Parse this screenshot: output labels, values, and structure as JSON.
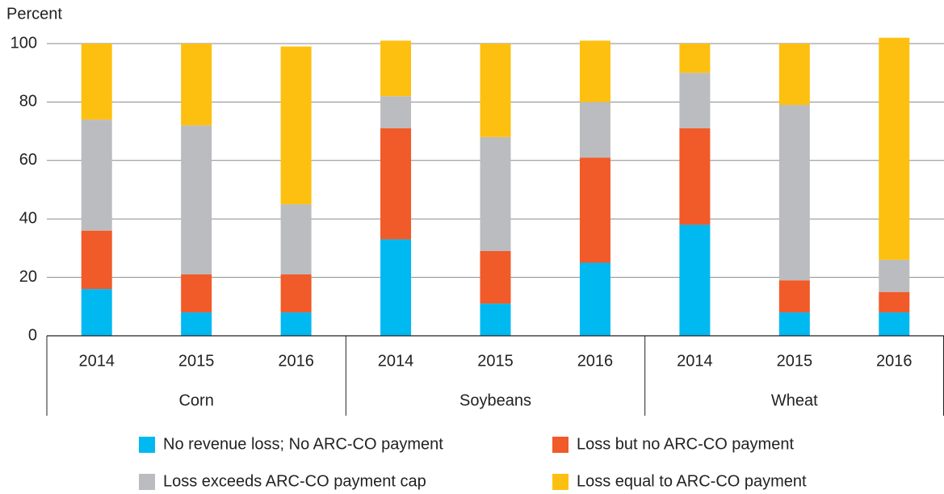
{
  "chart_data": {
    "type": "stacked-bar",
    "y_label": "Percent",
    "categories": [
      "2014",
      "2015",
      "2016",
      "2014",
      "2015",
      "2016",
      "2014",
      "2015",
      "2016"
    ],
    "groups": [
      "Corn",
      "Soybeans",
      "Wheat"
    ],
    "series": [
      {
        "name": "No revenue loss; No ARC-CO payment",
        "color": "#00b9f1",
        "values": [
          16,
          8,
          8,
          33,
          11,
          25,
          38,
          8,
          8
        ]
      },
      {
        "name": "Loss but no ARC-CO payment",
        "color": "#f15a29",
        "values": [
          20,
          13,
          13,
          38,
          18,
          36,
          33,
          11,
          7
        ]
      },
      {
        "name": "Loss exceeds ARC-CO payment cap",
        "color": "#bbbcbf",
        "values": [
          38,
          51,
          24,
          11,
          39,
          19,
          19,
          60,
          11
        ]
      },
      {
        "name": "Loss equal to ARC-CO payment",
        "color": "#fdc010",
        "values": [
          26,
          28,
          54,
          19,
          32,
          21,
          10,
          21,
          76
        ]
      }
    ],
    "ylim": [
      0,
      100
    ],
    "yticks": [
      0,
      20,
      40,
      60,
      80,
      100
    ],
    "grid": true
  }
}
